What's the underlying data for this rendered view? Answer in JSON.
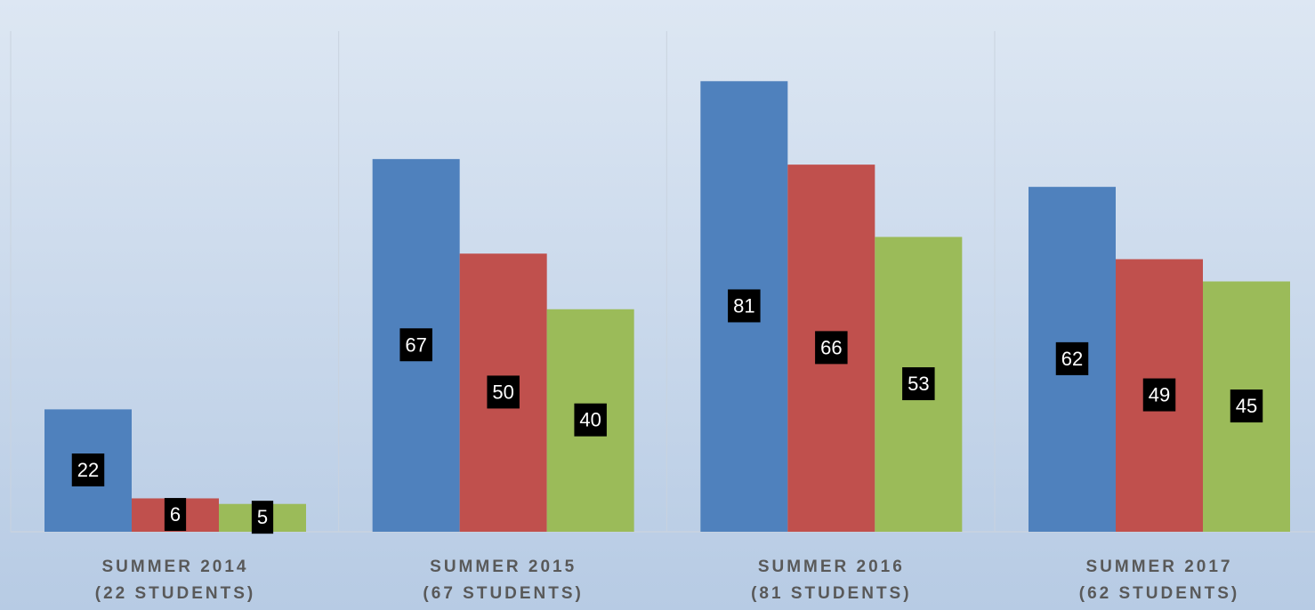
{
  "chart_data": {
    "type": "bar",
    "categories": [
      [
        "SUMMER 2014",
        "(22 STUDENTS)"
      ],
      [
        "SUMMER 2015",
        "(67 STUDENTS)"
      ],
      [
        "SUMMER 2016",
        "(81 STUDENTS)"
      ],
      [
        "SUMMER 2017",
        "(62 STUDENTS)"
      ]
    ],
    "series": [
      {
        "color": "#4f81bd",
        "values": [
          22,
          67,
          81,
          62
        ]
      },
      {
        "color": "#c0504d",
        "values": [
          6,
          50,
          66,
          49
        ]
      },
      {
        "color": "#9bbb59",
        "values": [
          5,
          40,
          53,
          45
        ]
      }
    ],
    "ylim": [
      0,
      90
    ]
  }
}
